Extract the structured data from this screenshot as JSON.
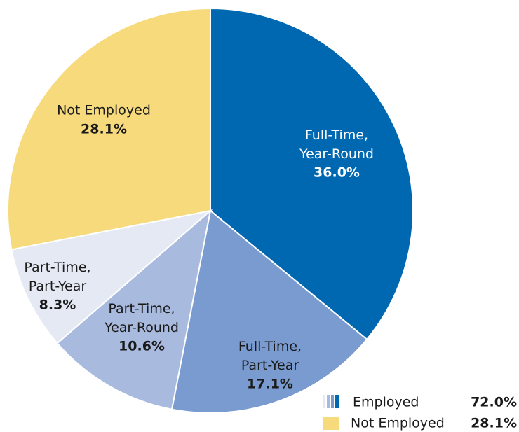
{
  "chart_data": {
    "type": "pie",
    "categories": [
      "Full-Time, Year-Round",
      "Full-Time, Part-Year",
      "Part-Time, Year-Round",
      "Part-Time, Part-Year",
      "Not Employed"
    ],
    "values": [
      36.0,
      17.1,
      10.6,
      8.3,
      28.1
    ],
    "value_labels": [
      "36.0%",
      "17.1%",
      "10.6%",
      "8.3%",
      "28.1%"
    ],
    "colors": [
      "#0067b1",
      "#7a9bd0",
      "#a9badf",
      "#e4e9f4",
      "#f6da7b"
    ],
    "legend": [
      {
        "label": "Employed",
        "value": 72.0,
        "value_label": "72.0%"
      },
      {
        "label": "Not Employed",
        "value": 28.1,
        "value_label": "28.1%"
      }
    ]
  }
}
